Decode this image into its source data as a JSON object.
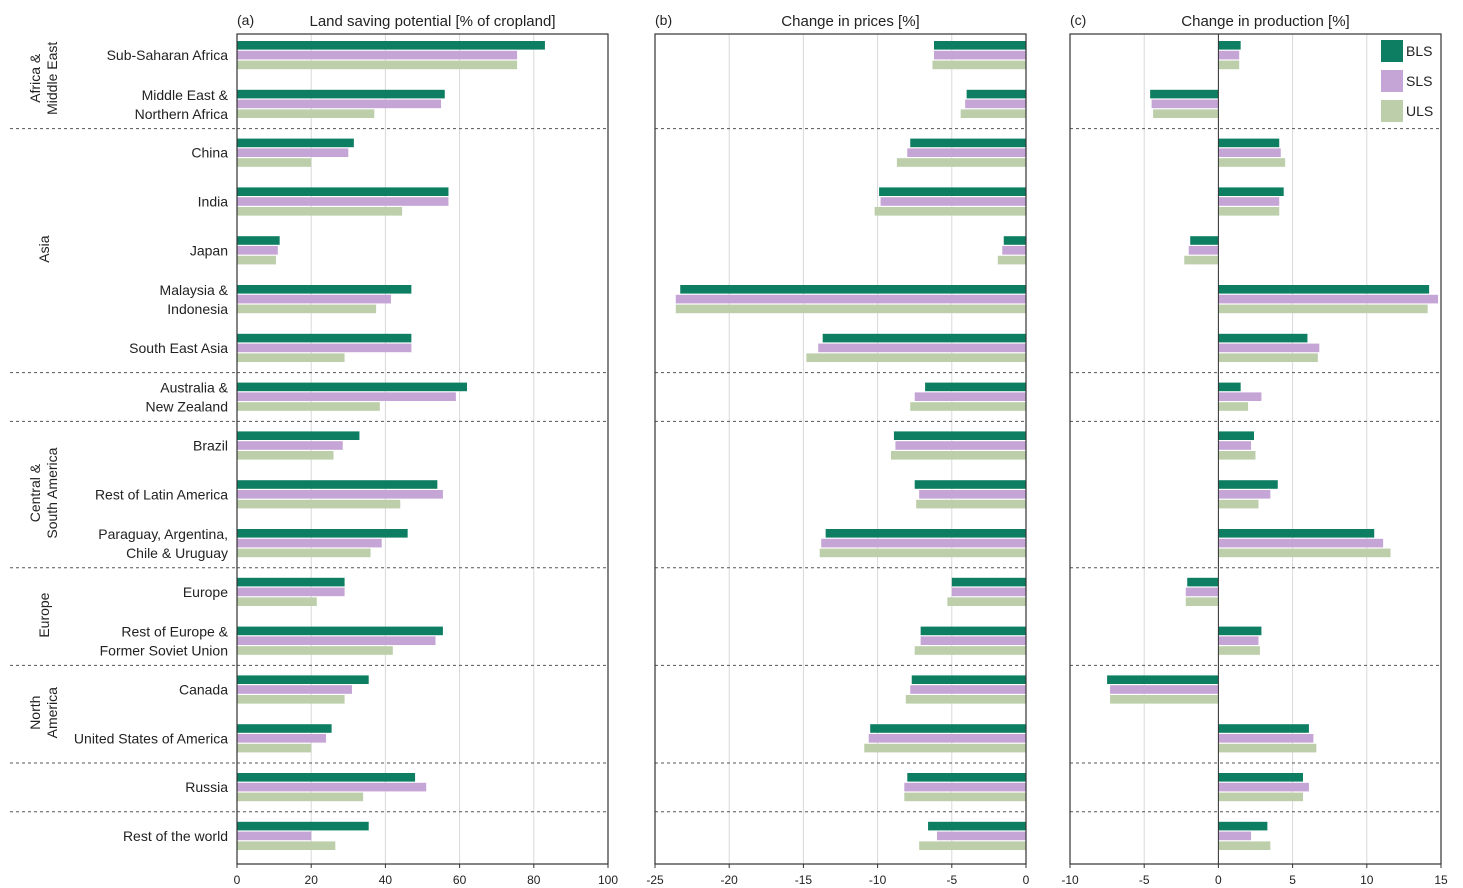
{
  "chart_data": [
    {
      "type": "bar",
      "orientation": "horizontal",
      "panel": "(a)",
      "title": "Land saving potential [% of cropland]",
      "xlim": [
        0,
        100
      ],
      "xticks": [
        0,
        20,
        40,
        60,
        80,
        100
      ],
      "xtick_labels": [
        "0",
        "20",
        "40",
        "60",
        "80",
        "100"
      ],
      "grid": true,
      "categories": [
        "Sub-Saharan Africa",
        "Middle East &\nNorthern Africa",
        "China",
        "India",
        "Japan",
        "Malaysia &\nIndonesia",
        "South East Asia",
        "Australia &\nNew Zealand",
        "Brazil",
        "Rest of Latin America",
        "Paraguay, Argentina,\nChile & Uruguay",
        "Europe",
        "Rest of Europe &\nFormer Soviet Union",
        "Canada",
        "United States of America",
        "Russia",
        "Rest of the world"
      ],
      "groups": [
        {
          "name": "Africa &\nMiddle East",
          "rows": [
            0,
            1
          ]
        },
        {
          "name": "Asia",
          "rows": [
            2,
            3,
            4,
            5,
            6
          ]
        },
        {
          "name": "",
          "rows": [
            7
          ]
        },
        {
          "name": "Central &\nSouth America",
          "rows": [
            8,
            9,
            10
          ]
        },
        {
          "name": "Europe",
          "rows": [
            11,
            12
          ]
        },
        {
          "name": "North\nAmerica",
          "rows": [
            13,
            14
          ]
        },
        {
          "name": "",
          "rows": [
            15
          ]
        },
        {
          "name": "",
          "rows": [
            16
          ]
        }
      ],
      "series": [
        {
          "name": "BLS",
          "values": [
            83,
            56,
            31.5,
            57,
            11.5,
            47,
            47,
            62,
            33,
            54,
            46,
            29,
            55.5,
            35.5,
            25.5,
            48,
            35.5
          ]
        },
        {
          "name": "SLS",
          "values": [
            75.5,
            55,
            30,
            57,
            11,
            41.5,
            47,
            59,
            28.5,
            55.5,
            39,
            29,
            53.5,
            31,
            24,
            51,
            20
          ]
        },
        {
          "name": "ULS",
          "values": [
            75.5,
            37,
            20,
            44.5,
            10.5,
            37.5,
            29,
            38.5,
            26,
            44,
            36,
            21.5,
            42,
            29,
            20,
            34,
            26.5
          ]
        }
      ]
    },
    {
      "type": "bar",
      "orientation": "horizontal",
      "panel": "(b)",
      "title": "Change in prices [%]",
      "xlim": [
        -25,
        0
      ],
      "xticks": [
        -25,
        -20,
        -15,
        -10,
        -5,
        0
      ],
      "xtick_labels": [
        "-25",
        "-20",
        "-15",
        "-10",
        "-5",
        "0"
      ],
      "grid": true,
      "series": [
        {
          "name": "BLS",
          "values": [
            -6.2,
            -4,
            -7.8,
            -9.9,
            -1.5,
            -23.3,
            -13.7,
            -6.8,
            -8.9,
            -7.5,
            -13.5,
            -5,
            -7.1,
            -7.7,
            -10.5,
            -8,
            -6.6
          ]
        },
        {
          "name": "SLS",
          "values": [
            -6.2,
            -4.1,
            -8,
            -9.8,
            -1.6,
            -23.6,
            -14,
            -7.5,
            -8.8,
            -7.2,
            -13.8,
            -5,
            -7.1,
            -7.8,
            -10.6,
            -8.2,
            -6
          ]
        },
        {
          "name": "ULS",
          "values": [
            -6.3,
            -4.4,
            -8.7,
            -10.2,
            -1.9,
            -23.6,
            -14.8,
            -7.8,
            -9.1,
            -7.4,
            -13.9,
            -5.3,
            -7.5,
            -8.1,
            -10.9,
            -8.2,
            -7.2
          ]
        }
      ]
    },
    {
      "type": "bar",
      "orientation": "horizontal",
      "panel": "(c)",
      "title": "Change in production [%]",
      "xlim": [
        -10,
        15
      ],
      "xticks": [
        -10,
        -5,
        0,
        5,
        10,
        15
      ],
      "xtick_labels": [
        "-10",
        "-5",
        "0",
        "5",
        "10",
        "15"
      ],
      "grid": true,
      "legend": {
        "position": "top-right",
        "entries": [
          "BLS",
          "SLS",
          "ULS"
        ]
      },
      "series": [
        {
          "name": "BLS",
          "values": [
            1.5,
            -4.6,
            4.1,
            4.4,
            -1.9,
            14.2,
            6,
            1.5,
            2.4,
            4,
            10.5,
            -2.1,
            2.9,
            -7.5,
            6.1,
            5.7,
            3.3
          ]
        },
        {
          "name": "SLS",
          "values": [
            1.4,
            -4.5,
            4.2,
            4.1,
            -2,
            14.8,
            6.8,
            2.9,
            2.2,
            3.5,
            11.1,
            -2.2,
            2.7,
            -7.3,
            6.4,
            6.1,
            2.2
          ]
        },
        {
          "name": "ULS",
          "values": [
            1.4,
            -4.4,
            4.5,
            4.1,
            -2.3,
            14.1,
            6.7,
            2,
            2.5,
            2.7,
            11.6,
            -2.2,
            2.8,
            -7.3,
            6.6,
            5.7,
            3.5
          ]
        }
      ]
    }
  ],
  "colors": {
    "BLS": "#0e7e63",
    "SLS": "#c5a4d6",
    "ULS": "#bcceaa",
    "grid": "#d9d9d9",
    "axis": "#333333",
    "separator": "#555555"
  }
}
